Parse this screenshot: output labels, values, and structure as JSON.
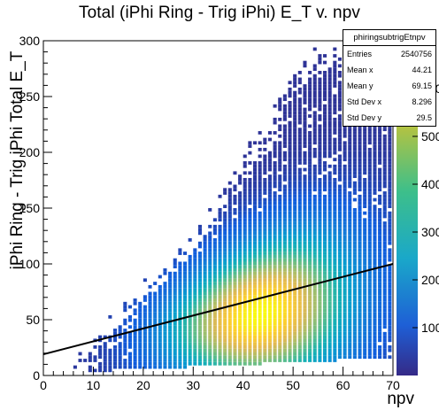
{
  "title": "Total (iPhi Ring - Trig iPhi) E_T v. npv",
  "stats": {
    "name": "phiringsubtrigEtnpv",
    "rows": [
      {
        "label": "Entries",
        "value": "2540756"
      },
      {
        "label": "Mean x",
        "value": "44.21"
      },
      {
        "label": "Mean y",
        "value": "69.15"
      },
      {
        "label": "Std Dev x",
        "value": "8.296"
      },
      {
        "label": "Std Dev y",
        "value": "29.5"
      }
    ]
  },
  "chart_data": {
    "type": "heatmap",
    "title": "Total (iPhi Ring - Trig iPhi) E_T v. npv",
    "xlabel": "npv",
    "ylabel": "iPhi Ring - Trig iPhi Total E_T",
    "xlim": [
      0,
      70
    ],
    "ylim": [
      0,
      300
    ],
    "x_ticks": [
      0,
      10,
      20,
      30,
      40,
      50,
      60,
      70
    ],
    "y_ticks": [
      0,
      50,
      100,
      150,
      200,
      250,
      300
    ],
    "colorbar_ticks": [
      100,
      200,
      300,
      400,
      500,
      600
    ],
    "colorbar_max": 700,
    "peak": {
      "x": 43,
      "y": 55
    },
    "fit_line": {
      "x": [
        0,
        70
      ],
      "y": [
        19,
        100
      ]
    },
    "colors": {
      "low": "#3b4cc0",
      "mid": "#2fb8a6",
      "high": "#f4e03a",
      "peak": "#ffd94a"
    }
  }
}
